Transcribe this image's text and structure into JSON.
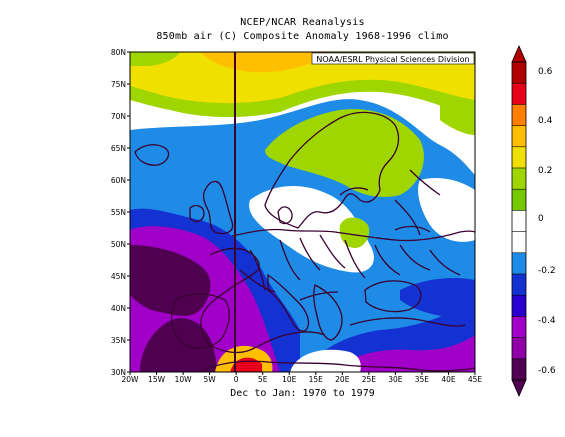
{
  "title_line1": "NCEP/NCAR Reanalysis",
  "title_line2": "850mb air (C) Composite Anomaly 1968-1996 climo",
  "credit": "NOAA/ESRL Physical Sciences Division",
  "footer": "Dec to Jan: 1970 to 1979",
  "map": {
    "lon_range": [
      -20,
      45
    ],
    "lat_range": [
      30,
      80
    ],
    "lat_ticks": [
      "80N",
      "75N",
      "70N",
      "65N",
      "60N",
      "55N",
      "50N",
      "45N",
      "40N",
      "35N",
      "30N"
    ],
    "lon_ticks": [
      "20W",
      "15W",
      "10W",
      "5W",
      "0",
      "5E",
      "10E",
      "15E",
      "20E",
      "25E",
      "30E",
      "35E",
      "40E",
      "45E"
    ]
  },
  "colorbar": {
    "labels": [
      "0.6",
      "0.4",
      "0.2",
      "0",
      "-0.2",
      "-0.4",
      "-0.6"
    ],
    "colors": [
      "#b00000",
      "#e8001a",
      "#ff7f00",
      "#ffbf00",
      "#f0e000",
      "#a0d600",
      "#76c800",
      "#ffffff",
      "#ffffff",
      "#1e8ce6",
      "#1432d2",
      "#2a00d0",
      "#a000c8",
      "#9000a8",
      "#500050"
    ]
  },
  "palette": {
    "green_light": "#a0d600",
    "yellow": "#f0e000",
    "orange": "#ffbf00",
    "red": "#e8001a",
    "cyan_blue": "#1e8ce6",
    "blue": "#1432d2",
    "purple": "#a000c8",
    "dark_purple": "#500050",
    "white": "#ffffff",
    "outline": "#3a0030"
  }
}
